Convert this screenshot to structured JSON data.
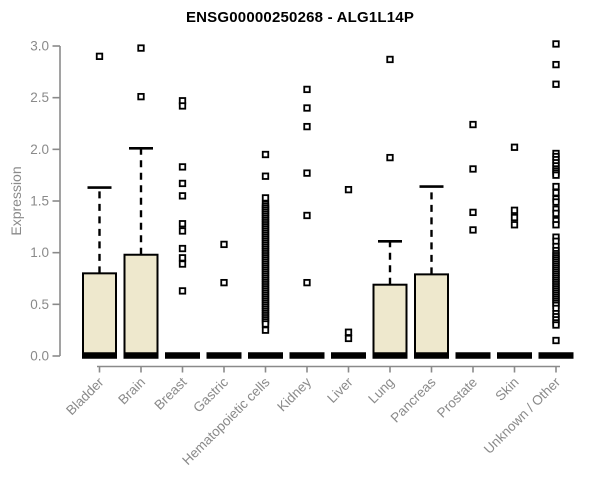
{
  "chart_data": {
    "type": "boxplot",
    "title": "ENSG00000250268 - ALG1L14P",
    "xlabel": "",
    "ylabel": "Expression",
    "ylim": [
      0.0,
      3.05
    ],
    "yticks": [
      0.0,
      0.5,
      1.0,
      1.5,
      2.0,
      2.5,
      3.0
    ],
    "grid": false,
    "legend": "none",
    "colors": {
      "box_fill": "#EEE8CD",
      "box_outline": "#000000",
      "outlier_fill": "#FFFFFF",
      "axis": "#8A8A8A",
      "title": "#000000"
    },
    "categories": [
      "Bladder",
      "Brain",
      "Breast",
      "Gastric",
      "Hematopoietic cells",
      "Kidney",
      "Liver",
      "Lung",
      "Pancreas",
      "Prostate",
      "Skin",
      "Unknown / Other"
    ],
    "series": [
      {
        "category": "Bladder",
        "q1": 0,
        "median": 0,
        "q3": 0.8,
        "whisker_low": 0,
        "whisker_high": 1.63,
        "outliers": [
          2.9
        ]
      },
      {
        "category": "Brain",
        "q1": 0,
        "median": 0,
        "q3": 0.98,
        "whisker_low": 0,
        "whisker_high": 2.01,
        "outliers": [
          2.98,
          2.51
        ]
      },
      {
        "category": "Breast",
        "q1": 0,
        "median": 0,
        "q3": 0,
        "whisker_low": 0,
        "whisker_high": 0,
        "outliers": [
          2.47,
          2.42,
          1.83,
          1.67,
          1.55,
          1.28,
          1.21,
          1.04,
          0.95,
          0.89,
          0.63
        ]
      },
      {
        "category": "Gastric",
        "q1": 0,
        "median": 0,
        "q3": 0,
        "whisker_low": 0,
        "whisker_high": 0,
        "outliers": [
          1.08,
          0.71
        ]
      },
      {
        "category": "Hematopoietic cells",
        "q1": 0,
        "median": 0,
        "q3": 0,
        "whisker_low": 0,
        "whisker_high": 0,
        "outliers": [
          1.95,
          1.74,
          1.53,
          1.47,
          1.45,
          1.43,
          1.41,
          1.39,
          1.37,
          1.35,
          1.33,
          1.31,
          1.29,
          1.27,
          1.25,
          1.23,
          1.21,
          1.19,
          1.17,
          1.15,
          1.13,
          1.11,
          1.09,
          1.07,
          1.05,
          1.03,
          1.01,
          0.99,
          0.97,
          0.95,
          0.93,
          0.91,
          0.89,
          0.87,
          0.85,
          0.83,
          0.81,
          0.79,
          0.77,
          0.75,
          0.73,
          0.71,
          0.69,
          0.67,
          0.65,
          0.63,
          0.61,
          0.59,
          0.57,
          0.55,
          0.53,
          0.51,
          0.49,
          0.47,
          0.45,
          0.43,
          0.41,
          0.39,
          0.37,
          0.35,
          0.33,
          0.31,
          0.25
        ]
      },
      {
        "category": "Kidney",
        "q1": 0,
        "median": 0,
        "q3": 0,
        "whisker_low": 0,
        "whisker_high": 0,
        "outliers": [
          2.58,
          2.4,
          2.22,
          1.77,
          1.36,
          0.71
        ]
      },
      {
        "category": "Liver",
        "q1": 0,
        "median": 0,
        "q3": 0,
        "whisker_low": 0,
        "whisker_high": 0,
        "outliers": [
          1.61,
          0.23,
          0.17
        ]
      },
      {
        "category": "Lung",
        "q1": 0,
        "median": 0,
        "q3": 0.69,
        "whisker_low": 0,
        "whisker_high": 1.11,
        "outliers": [
          2.87,
          1.92
        ]
      },
      {
        "category": "Pancreas",
        "q1": 0,
        "median": 0,
        "q3": 0.79,
        "whisker_low": 0,
        "whisker_high": 1.64,
        "outliers": []
      },
      {
        "category": "Prostate",
        "q1": 0,
        "median": 0,
        "q3": 0,
        "whisker_low": 0,
        "whisker_high": 0,
        "outliers": [
          2.24,
          1.81,
          1.39,
          1.22
        ]
      },
      {
        "category": "Skin",
        "q1": 0,
        "median": 0,
        "q3": 0,
        "whisker_low": 0,
        "whisker_high": 0,
        "outliers": [
          2.02,
          1.41,
          1.34,
          1.27
        ]
      },
      {
        "category": "Unknown / Other",
        "q1": 0,
        "median": 0,
        "q3": 0,
        "whisker_low": 0,
        "whisker_high": 0,
        "outliers": [
          3.02,
          2.82,
          2.63,
          1.96,
          1.93,
          1.9,
          1.87,
          1.84,
          1.81,
          1.79,
          1.77,
          1.75,
          1.64,
          1.58,
          1.52,
          1.49,
          1.42,
          1.38,
          1.31,
          1.27,
          1.15,
          1.11,
          1.06,
          1.02,
          0.99,
          0.97,
          0.95,
          0.93,
          0.91,
          0.89,
          0.87,
          0.85,
          0.83,
          0.81,
          0.79,
          0.77,
          0.75,
          0.73,
          0.71,
          0.69,
          0.67,
          0.65,
          0.63,
          0.61,
          0.59,
          0.57,
          0.55,
          0.53,
          0.51,
          0.49,
          0.46,
          0.41,
          0.38,
          0.35,
          0.32,
          0.3,
          0.15
        ]
      }
    ]
  }
}
